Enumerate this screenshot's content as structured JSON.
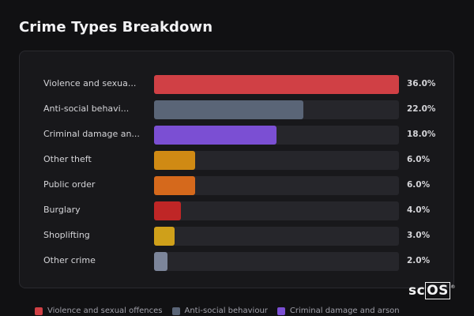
{
  "title": "Crime Types Breakdown",
  "logo_text": "scOS",
  "chart_data": {
    "type": "bar",
    "orientation": "horizontal",
    "title": "Crime Types Breakdown",
    "categories": [
      "Violence and sexua...",
      "Anti-social behavi...",
      "Criminal damage an...",
      "Other theft",
      "Public order",
      "Burglary",
      "Shoplifting",
      "Other crime"
    ],
    "values": [
      36.0,
      22.0,
      18.0,
      6.0,
      6.0,
      4.0,
      3.0,
      2.0
    ],
    "value_labels": [
      "36.0%",
      "22.0%",
      "18.0%",
      "6.0%",
      "6.0%",
      "4.0%",
      "3.0%",
      "2.0%"
    ],
    "colors": [
      "#d04045",
      "#5a6577",
      "#7b4fd3",
      "#d08a14",
      "#d5691c",
      "#bf2626",
      "#cfa01a",
      "#7c859a"
    ],
    "unit": "%",
    "xlim": [
      0,
      36.0
    ],
    "grid": false,
    "legend_position": "bottom",
    "legend": [
      {
        "label": "Violence and sexual offences",
        "color": "#d04045"
      },
      {
        "label": "Anti-social behaviour",
        "color": "#5a6577"
      },
      {
        "label": "Criminal damage and arson",
        "color": "#7b4fd3"
      }
    ]
  }
}
